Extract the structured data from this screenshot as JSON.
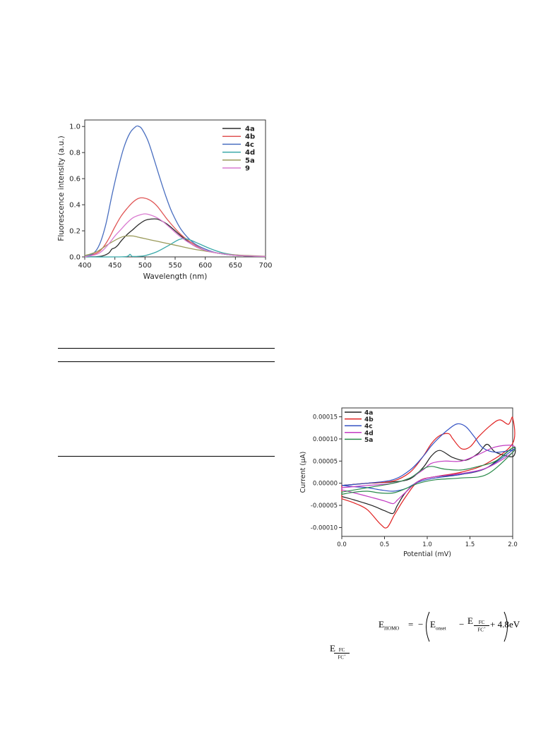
{
  "fluorescence_chart": {
    "chart_data": {
      "type": "line",
      "xlabel": "Wavelength (nm)",
      "ylabel": "Fluorescence intensity (a.u.)",
      "xlim": [
        400,
        700
      ],
      "ylim": [
        0,
        1.05
      ],
      "xticks": [
        400,
        450,
        500,
        550,
        600,
        650,
        700
      ],
      "yticks": [
        0.0,
        0.2,
        0.4,
        0.6,
        0.8,
        1.0
      ],
      "legend_position": "top-right",
      "series": [
        {
          "name": "4a",
          "color": "#2b2b2b",
          "x": [
            400,
            420,
            430,
            440,
            445,
            450,
            455,
            460,
            470,
            480,
            490,
            500,
            510,
            520,
            530,
            540,
            560,
            580,
            600,
            620,
            650,
            700
          ],
          "y": [
            0,
            0.002,
            0.008,
            0.03,
            0.06,
            0.07,
            0.09,
            0.12,
            0.17,
            0.21,
            0.25,
            0.28,
            0.29,
            0.29,
            0.27,
            0.24,
            0.16,
            0.09,
            0.05,
            0.03,
            0.012,
            0.003
          ]
        },
        {
          "name": "4b",
          "color": "#e05555",
          "x": [
            400,
            420,
            430,
            440,
            450,
            460,
            470,
            480,
            490,
            500,
            510,
            520,
            530,
            540,
            560,
            580,
            600,
            620,
            650,
            700
          ],
          "y": [
            0,
            0.03,
            0.07,
            0.14,
            0.23,
            0.31,
            0.37,
            0.42,
            0.45,
            0.45,
            0.43,
            0.39,
            0.33,
            0.27,
            0.17,
            0.1,
            0.05,
            0.03,
            0.012,
            0.003
          ]
        },
        {
          "name": "4c",
          "color": "#4a6fc0",
          "x": [
            400,
            415,
            425,
            435,
            445,
            455,
            465,
            475,
            485,
            490,
            495,
            505,
            515,
            525,
            535,
            545,
            560,
            580,
            600,
            620,
            650,
            700
          ],
          "y": [
            0,
            0.03,
            0.1,
            0.25,
            0.47,
            0.67,
            0.84,
            0.95,
            1.0,
            1.0,
            0.98,
            0.89,
            0.75,
            0.6,
            0.46,
            0.34,
            0.21,
            0.11,
            0.06,
            0.03,
            0.012,
            0.003
          ]
        },
        {
          "name": "4d",
          "color": "#3aa9a9",
          "x": [
            400,
            450,
            470,
            475,
            478,
            482,
            490,
            500,
            520,
            540,
            555,
            565,
            575,
            590,
            610,
            630,
            650,
            670,
            700
          ],
          "y": [
            0,
            0,
            0.003,
            0.02,
            0.005,
            0.003,
            0.005,
            0.01,
            0.04,
            0.09,
            0.13,
            0.14,
            0.13,
            0.1,
            0.06,
            0.03,
            0.015,
            0.008,
            0.003
          ]
        },
        {
          "name": "5a",
          "color": "#9a9a5a",
          "x": [
            400,
            420,
            440,
            460,
            470,
            480,
            490,
            500,
            520,
            540,
            560,
            580,
            600,
            620,
            650,
            700
          ],
          "y": [
            0.01,
            0.04,
            0.1,
            0.15,
            0.16,
            0.16,
            0.15,
            0.14,
            0.12,
            0.1,
            0.08,
            0.06,
            0.045,
            0.03,
            0.015,
            0.005
          ]
        },
        {
          "name": "9",
          "color": "#d97ad0",
          "x": [
            400,
            420,
            430,
            440,
            450,
            460,
            470,
            480,
            490,
            500,
            510,
            520,
            530,
            540,
            560,
            580,
            600,
            620,
            650,
            700
          ],
          "y": [
            0,
            0.02,
            0.05,
            0.1,
            0.16,
            0.21,
            0.26,
            0.3,
            0.32,
            0.33,
            0.32,
            0.3,
            0.27,
            0.23,
            0.15,
            0.09,
            0.05,
            0.03,
            0.012,
            0.003
          ]
        }
      ]
    }
  },
  "cv_chart": {
    "chart_data": {
      "type": "line",
      "xlabel": "Potential (mV)",
      "ylabel": "Current (μA)",
      "xlim": [
        0.0,
        2.0
      ],
      "ylim": [
        -0.00012,
        0.00017
      ],
      "xtick_labels": [
        "0.0",
        "0.5",
        "1.0",
        "1.5",
        "2.0"
      ],
      "xticks": [
        0,
        0.5,
        1.0,
        1.5,
        2.0
      ],
      "ytick_labels": [
        "-0.00010",
        "-0.00005",
        "0.00000",
        "0.00005",
        "0.00010",
        "0.00015"
      ],
      "yticks": [
        -0.0001,
        -5e-05,
        0,
        5e-05,
        0.0001,
        0.00015
      ],
      "legend_position": "top-left",
      "series": [
        {
          "name": "4a",
          "color": "#222222",
          "x": [
            0,
            0.3,
            0.6,
            0.8,
            0.95,
            1.05,
            1.15,
            1.3,
            1.45,
            1.6,
            1.7,
            1.8,
            2.0,
            2.0,
            1.7,
            1.4,
            1.1,
            0.9,
            0.75,
            0.65,
            0.6,
            0.5,
            0.35,
            0.15,
            0
          ],
          "y": [
            -5e-06,
            0.0,
            3e-06,
            1e-05,
            3.5e-05,
            6.2e-05,
            7.4e-05,
            5.8e-05,
            5.2e-05,
            6.8e-05,
            8.8e-05,
            7e-05,
            6e-05,
            8e-05,
            3.5e-05,
            2e-05,
            1.5e-05,
            5e-06,
            -2e-05,
            -5e-05,
            -6.8e-05,
            -6.2e-05,
            -5e-05,
            -3.8e-05,
            -3e-05
          ]
        },
        {
          "name": "4b",
          "color": "#e02020",
          "x": [
            0,
            0.3,
            0.6,
            0.8,
            0.95,
            1.05,
            1.15,
            1.25,
            1.3,
            1.4,
            1.5,
            1.6,
            1.75,
            1.85,
            1.95,
            2.0,
            2.0,
            1.7,
            1.4,
            1.1,
            0.9,
            0.75,
            0.62,
            0.53,
            0.45,
            0.3,
            0.15,
            0
          ],
          "y": [
            -5e-06,
            0.0,
            5e-06,
            2.5e-05,
            6e-05,
            9e-05,
            0.000108,
            0.000112,
            0.0001,
            7.8e-05,
            8.2e-05,
            0.000105,
            0.000132,
            0.000143,
            0.000133,
            0.000148,
            9e-05,
            4.5e-05,
            2.5e-05,
            1.5e-05,
            5e-06,
            -3e-05,
            -7e-05,
            -0.0001,
            -9.2e-05,
            -6e-05,
            -4.5e-05,
            -3.5e-05
          ]
        },
        {
          "name": "4c",
          "color": "#3553c4",
          "x": [
            0,
            0.3,
            0.6,
            0.8,
            0.95,
            1.05,
            1.15,
            1.25,
            1.35,
            1.45,
            1.55,
            1.65,
            1.8,
            2.0,
            2.0,
            1.7,
            1.4,
            1.1,
            0.9,
            0.75,
            0.6,
            0.45,
            0.3,
            0.15,
            0
          ],
          "y": [
            -5e-06,
            0.0,
            8e-06,
            3e-05,
            6e-05,
            8.5e-05,
            0.000105,
            0.000122,
            0.000134,
            0.000128,
            0.000105,
            8e-05,
            7e-05,
            7.5e-05,
            7.5e-05,
            3.5e-05,
            2e-05,
            1.2e-05,
            3e-06,
            -1.2e-05,
            -1.8e-05,
            -1.5e-05,
            -1e-05,
            -8e-06,
            -5e-06
          ]
        },
        {
          "name": "4d",
          "color": "#c23bc2",
          "x": [
            0,
            0.3,
            0.6,
            0.8,
            0.95,
            1.05,
            1.2,
            1.4,
            1.6,
            1.8,
            2.0,
            2.0,
            1.7,
            1.4,
            1.1,
            0.9,
            0.75,
            0.65,
            0.6,
            0.5,
            0.35,
            0.15,
            0
          ],
          "y": [
            -1e-05,
            -5e-06,
            0.0,
            1.2e-05,
            3e-05,
            4.5e-05,
            5e-05,
            5e-05,
            6.5e-05,
            8.2e-05,
            8.5e-05,
            7e-05,
            3.5e-05,
            2.2e-05,
            1.5e-05,
            5e-06,
            -2e-05,
            -3.8e-05,
            -4.6e-05,
            -4e-05,
            -3.2e-05,
            -2.2e-05,
            -1.5e-05
          ]
        },
        {
          "name": "5a",
          "color": "#2a8a4a",
          "x": [
            0,
            0.3,
            0.6,
            0.8,
            0.95,
            1.05,
            1.2,
            1.4,
            1.6,
            1.8,
            2.0,
            2.0,
            1.7,
            1.4,
            1.1,
            0.9,
            0.75,
            0.6,
            0.45,
            0.3,
            0.15,
            0
          ],
          "y": [
            -2e-05,
            -1e-05,
            0.0,
            1.2e-05,
            3.2e-05,
            3.8e-05,
            3.2e-05,
            3e-05,
            3.8e-05,
            5e-05,
            8e-05,
            7e-05,
            2e-05,
            1.2e-05,
            8e-06,
            0.0,
            -1.2e-05,
            -2.2e-05,
            -2.2e-05,
            -1.8e-05,
            -2e-05,
            -2.5e-05
          ]
        }
      ]
    }
  },
  "equation": {
    "lhs": "E",
    "lhs_sub": "HOMO",
    "equals": "=",
    "minus": "−",
    "onset": "E",
    "onset_sub": "onset",
    "fc": "E",
    "fc_num": "FC",
    "fc_den": "FC",
    "fc_sup": "+",
    "plus_value": "+ 4.8",
    "unit": "eV"
  },
  "inline_symbol": {
    "e": "E",
    "num": "FC",
    "den": "FC",
    "sup": "+"
  }
}
